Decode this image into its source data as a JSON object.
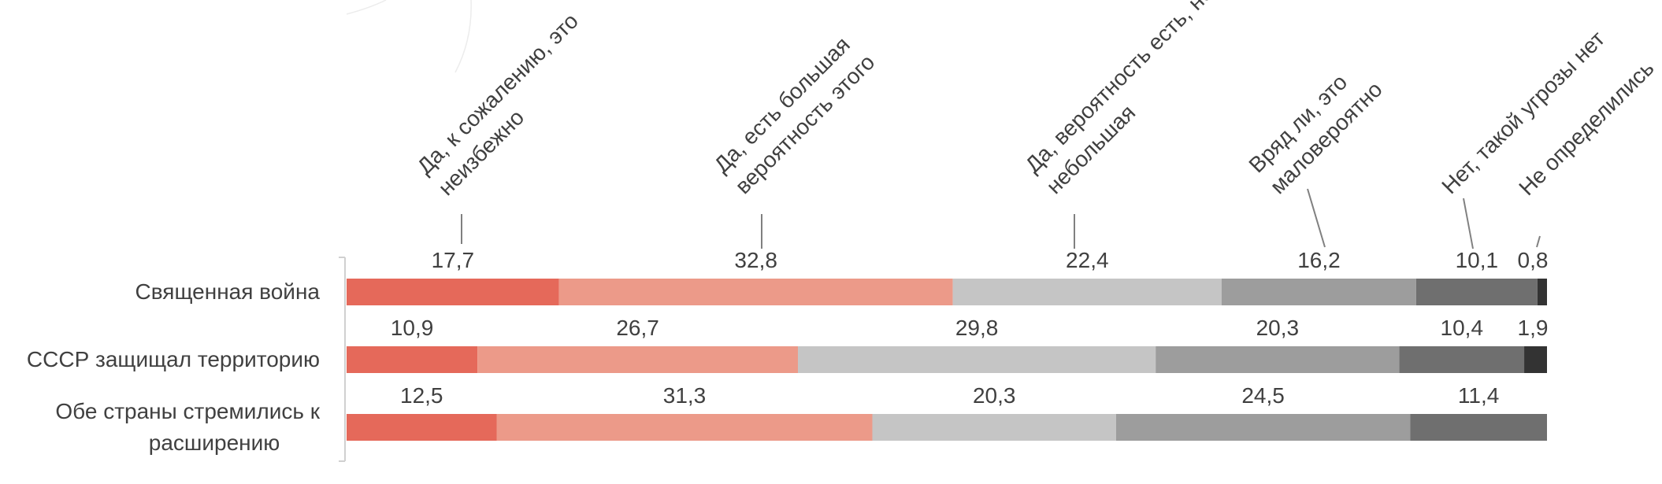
{
  "chart_data": {
    "type": "bar",
    "orientation": "horizontal",
    "stacked": true,
    "categories": [
      "Священная война",
      "СССР защищал территорию",
      "Обе страны стремились к расширению"
    ],
    "series": [
      {
        "name": "Да, к сожалению, это неизбежно",
        "values": [
          17.7,
          10.9,
          12.5
        ],
        "color": "#e5695a"
      },
      {
        "name": "Да, есть большая вероятность этого",
        "values": [
          32.8,
          26.7,
          31.3
        ],
        "color": "#ec9a89"
      },
      {
        "name": "Да, вероятность есть, но небольшая",
        "values": [
          22.4,
          29.8,
          20.3
        ],
        "color": "#c5c5c5"
      },
      {
        "name": "Вряд ли, это маловероятно",
        "values": [
          16.2,
          20.3,
          24.5
        ],
        "color": "#9d9d9d"
      },
      {
        "name": "Нет, такой угрозы нет",
        "values": [
          10.1,
          10.4,
          11.4
        ],
        "color": "#6f6f6f"
      },
      {
        "name": "Не определились",
        "values": [
          0.8,
          1.9,
          null
        ],
        "color": "#333333"
      }
    ],
    "value_labels": [
      [
        "17,7",
        "32,8",
        "22,4",
        "16,2",
        "10,1",
        "0,8"
      ],
      [
        "10,9",
        "26,7",
        "29,8",
        "20,3",
        "10,4",
        "1,9"
      ],
      [
        "12,5",
        "31,3",
        "20,3",
        "24,5",
        "11,4",
        ""
      ]
    ],
    "category_label_lines": [
      [
        "Священная война"
      ],
      [
        "СССР защищал территорию"
      ],
      [
        "Обе страны стремились к",
        "расширению"
      ]
    ],
    "legend_label_lines": [
      [
        "Да, к сожалению, это",
        "неизбежно"
      ],
      [
        "Да, есть большая",
        "вероятность этого"
      ],
      [
        "Да, вероятность есть, но",
        "небольшая"
      ],
      [
        "Вряд ли, это",
        "маловероятно"
      ],
      [
        "Нет, такой угрозы нет"
      ],
      [
        "Не определились"
      ]
    ],
    "xlim": [
      0,
      100
    ],
    "legend_placement": "top, rotated labels above first bar",
    "grid": false
  }
}
